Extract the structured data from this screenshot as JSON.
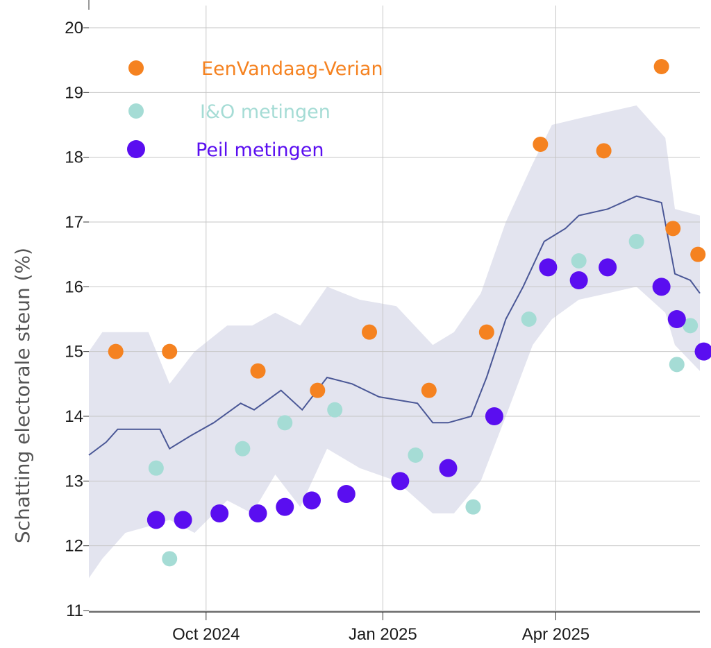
{
  "chart_data": {
    "type": "scatter",
    "title": "",
    "xlabel": "",
    "ylabel": "Schatting electorale steun (%)",
    "ylim": [
      11,
      20
    ],
    "xlim": [
      "2024-08-01",
      "2025-06-15"
    ],
    "y_ticks": [
      "11",
      "12",
      "13",
      "14",
      "15",
      "16",
      "17",
      "18",
      "19",
      "20"
    ],
    "x_ticks": [
      {
        "date": "2024-10-01",
        "label": "Oct 2024"
      },
      {
        "date": "2025-01-01",
        "label": "Jan 2025"
      },
      {
        "date": "2025-04-01",
        "label": "Apr 2025"
      }
    ],
    "x_gridlines": [
      "2024-10-01",
      "2025-01-01",
      "2025-04-01"
    ],
    "grid": true,
    "legend_position": "top-left",
    "colors": {
      "band": "#e3e4ef",
      "trend": "#4a5796",
      "eenvandaag": "#f58220",
      "io": "#a5dcd5",
      "peil": "#5a0ef0",
      "grid": "#c6c6c6"
    },
    "series": [
      {
        "name": "EenVandaag-Verian",
        "color": "#f58220",
        "points": [
          {
            "x": "2024-08-15",
            "y": 15.0
          },
          {
            "x": "2024-09-12",
            "y": 15.0
          },
          {
            "x": "2024-10-28",
            "y": 14.7
          },
          {
            "x": "2024-11-28",
            "y": 14.4
          },
          {
            "x": "2024-12-25",
            "y": 15.3
          },
          {
            "x": "2025-01-25",
            "y": 14.4
          },
          {
            "x": "2025-02-24",
            "y": 15.3
          },
          {
            "x": "2025-03-24",
            "y": 18.2
          },
          {
            "x": "2025-04-26",
            "y": 18.1
          },
          {
            "x": "2025-05-26",
            "y": 19.4
          },
          {
            "x": "2025-06-01",
            "y": 16.9
          },
          {
            "x": "2025-06-14",
            "y": 16.5
          }
        ]
      },
      {
        "name": "I&O metingen",
        "color": "#a5dcd5",
        "points": [
          {
            "x": "2024-09-05",
            "y": 13.2
          },
          {
            "x": "2024-09-12",
            "y": 11.8
          },
          {
            "x": "2024-10-20",
            "y": 13.5
          },
          {
            "x": "2024-11-11",
            "y": 13.9
          },
          {
            "x": "2024-12-07",
            "y": 14.1
          },
          {
            "x": "2025-01-18",
            "y": 13.4
          },
          {
            "x": "2025-02-17",
            "y": 12.6
          },
          {
            "x": "2025-03-18",
            "y": 15.5
          },
          {
            "x": "2025-04-13",
            "y": 16.4
          },
          {
            "x": "2025-05-13",
            "y": 16.7
          },
          {
            "x": "2025-06-03",
            "y": 14.8
          },
          {
            "x": "2025-06-10",
            "y": 15.4
          }
        ]
      },
      {
        "name": "Peil metingen",
        "color": "#5a0ef0",
        "points": [
          {
            "x": "2024-09-05",
            "y": 12.4
          },
          {
            "x": "2024-09-19",
            "y": 12.4
          },
          {
            "x": "2024-10-08",
            "y": 12.5
          },
          {
            "x": "2024-10-28",
            "y": 12.5
          },
          {
            "x": "2024-11-11",
            "y": 12.6
          },
          {
            "x": "2024-11-25",
            "y": 12.7
          },
          {
            "x": "2024-12-13",
            "y": 12.8
          },
          {
            "x": "2025-01-10",
            "y": 13.0
          },
          {
            "x": "2025-02-04",
            "y": 13.2
          },
          {
            "x": "2025-02-28",
            "y": 14.0
          },
          {
            "x": "2025-03-28",
            "y": 16.3
          },
          {
            "x": "2025-04-13",
            "y": 16.1
          },
          {
            "x": "2025-04-28",
            "y": 16.3
          },
          {
            "x": "2025-05-26",
            "y": 16.0
          },
          {
            "x": "2025-06-03",
            "y": 15.5
          },
          {
            "x": "2025-06-17",
            "y": 15.0
          }
        ]
      }
    ],
    "trend": [
      {
        "x": "2024-08-01",
        "y": 13.4
      },
      {
        "x": "2024-08-10",
        "y": 13.6
      },
      {
        "x": "2024-08-16",
        "y": 13.8
      },
      {
        "x": "2024-08-25",
        "y": 13.8
      },
      {
        "x": "2024-09-01",
        "y": 13.8
      },
      {
        "x": "2024-09-07",
        "y": 13.8
      },
      {
        "x": "2024-09-12",
        "y": 13.5
      },
      {
        "x": "2024-09-23",
        "y": 13.7
      },
      {
        "x": "2024-10-05",
        "y": 13.9
      },
      {
        "x": "2024-10-19",
        "y": 14.2
      },
      {
        "x": "2024-10-26",
        "y": 14.1
      },
      {
        "x": "2024-11-09",
        "y": 14.4
      },
      {
        "x": "2024-11-20",
        "y": 14.1
      },
      {
        "x": "2024-12-03",
        "y": 14.6
      },
      {
        "x": "2024-12-16",
        "y": 14.5
      },
      {
        "x": "2024-12-30",
        "y": 14.3
      },
      {
        "x": "2025-01-19",
        "y": 14.2
      },
      {
        "x": "2025-01-27",
        "y": 13.9
      },
      {
        "x": "2025-02-04",
        "y": 13.9
      },
      {
        "x": "2025-02-16",
        "y": 14.0
      },
      {
        "x": "2025-02-24",
        "y": 14.6
      },
      {
        "x": "2025-03-06",
        "y": 15.5
      },
      {
        "x": "2025-03-15",
        "y": 16.0
      },
      {
        "x": "2025-03-26",
        "y": 16.7
      },
      {
        "x": "2025-04-06",
        "y": 16.9
      },
      {
        "x": "2025-04-13",
        "y": 17.1
      },
      {
        "x": "2025-04-28",
        "y": 17.2
      },
      {
        "x": "2025-05-13",
        "y": 17.4
      },
      {
        "x": "2025-05-26",
        "y": 17.3
      },
      {
        "x": "2025-06-02",
        "y": 16.2
      },
      {
        "x": "2025-06-10",
        "y": 16.1
      },
      {
        "x": "2025-06-15",
        "y": 15.9
      }
    ],
    "band": [
      {
        "x": "2024-08-01",
        "lo": 11.5,
        "hi": 15.0
      },
      {
        "x": "2024-08-08",
        "lo": 11.8,
        "hi": 15.3
      },
      {
        "x": "2024-08-20",
        "lo": 12.2,
        "hi": 15.3
      },
      {
        "x": "2024-09-01",
        "lo": 12.3,
        "hi": 15.3
      },
      {
        "x": "2024-09-12",
        "lo": 12.4,
        "hi": 14.5
      },
      {
        "x": "2024-09-25",
        "lo": 12.2,
        "hi": 15.0
      },
      {
        "x": "2024-10-12",
        "lo": 12.7,
        "hi": 15.4
      },
      {
        "x": "2024-10-25",
        "lo": 12.5,
        "hi": 15.4
      },
      {
        "x": "2024-11-06",
        "lo": 13.1,
        "hi": 15.6
      },
      {
        "x": "2024-11-19",
        "lo": 12.6,
        "hi": 15.4
      },
      {
        "x": "2024-12-03",
        "lo": 13.5,
        "hi": 16.0
      },
      {
        "x": "2024-12-20",
        "lo": 13.2,
        "hi": 15.8
      },
      {
        "x": "2025-01-08",
        "lo": 13.0,
        "hi": 15.7
      },
      {
        "x": "2025-01-27",
        "lo": 12.5,
        "hi": 15.1
      },
      {
        "x": "2025-02-07",
        "lo": 12.5,
        "hi": 15.3
      },
      {
        "x": "2025-02-21",
        "lo": 13.0,
        "hi": 15.9
      },
      {
        "x": "2025-03-06",
        "lo": 14.0,
        "hi": 17.0
      },
      {
        "x": "2025-03-20",
        "lo": 15.1,
        "hi": 17.9
      },
      {
        "x": "2025-03-30",
        "lo": 15.5,
        "hi": 18.5
      },
      {
        "x": "2025-04-13",
        "lo": 15.8,
        "hi": 18.6
      },
      {
        "x": "2025-04-28",
        "lo": 15.9,
        "hi": 18.7
      },
      {
        "x": "2025-05-13",
        "lo": 16.0,
        "hi": 18.8
      },
      {
        "x": "2025-05-28",
        "lo": 15.6,
        "hi": 18.3
      },
      {
        "x": "2025-06-02",
        "lo": 15.1,
        "hi": 17.2
      },
      {
        "x": "2025-06-15",
        "lo": 14.7,
        "hi": 17.1
      }
    ]
  }
}
